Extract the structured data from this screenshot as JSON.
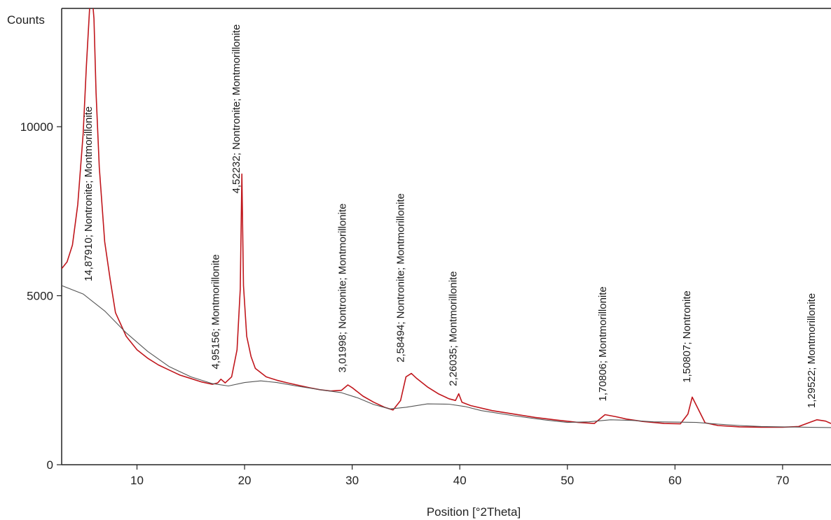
{
  "chart_data": {
    "type": "line",
    "title": "",
    "xlabel": "Position [°2Theta]",
    "ylabel": "Counts",
    "xlim": [
      3,
      74.5
    ],
    "ylim": [
      0,
      13500
    ],
    "x_ticks": [
      10,
      20,
      30,
      40,
      50,
      60,
      70
    ],
    "y_ticks": [
      0,
      5000,
      10000
    ],
    "grid": false,
    "colors": {
      "pattern": "#c0161c",
      "background": "#555555",
      "axis": "#222222"
    },
    "series": [
      {
        "role": "measured-pattern",
        "x": [
          3.0,
          3.5,
          4.0,
          4.5,
          5.0,
          5.3,
          5.6,
          5.8,
          6.0,
          6.2,
          6.5,
          7.0,
          7.5,
          8.0,
          9.0,
          10.0,
          11.0,
          12.0,
          13.0,
          14.0,
          15.0,
          16.0,
          17.0,
          17.5,
          17.8,
          18.2,
          18.8,
          19.3,
          19.6,
          19.75,
          19.9,
          20.2,
          20.6,
          21.0,
          22.0,
          23.0,
          24.0,
          25.0,
          26.0,
          27.0,
          28.0,
          29.0,
          29.6,
          30.0,
          31.0,
          32.0,
          33.0,
          33.8,
          34.5,
          35.0,
          35.5,
          36.0,
          37.0,
          38.0,
          39.0,
          39.6,
          39.9,
          40.2,
          41.0,
          43.0,
          45.0,
          47.0,
          49.0,
          51.0,
          52.5,
          53.5,
          54.5,
          55.5,
          57.0,
          59.0,
          60.5,
          61.2,
          61.6,
          62.0,
          62.8,
          64.0,
          66.0,
          68.0,
          70.0,
          71.5,
          72.5,
          73.2,
          74.0,
          74.5
        ],
        "y": [
          5800,
          6000,
          6500,
          7700,
          9800,
          11800,
          13500,
          14000,
          13200,
          11000,
          8800,
          6600,
          5500,
          4500,
          3800,
          3400,
          3150,
          2950,
          2800,
          2650,
          2550,
          2450,
          2380,
          2420,
          2530,
          2420,
          2600,
          3400,
          5200,
          8600,
          5300,
          3800,
          3200,
          2850,
          2600,
          2500,
          2420,
          2350,
          2280,
          2220,
          2180,
          2200,
          2360,
          2280,
          2030,
          1850,
          1700,
          1620,
          1900,
          2600,
          2700,
          2550,
          2300,
          2100,
          1950,
          1900,
          2100,
          1850,
          1750,
          1600,
          1500,
          1400,
          1320,
          1250,
          1220,
          1480,
          1420,
          1350,
          1280,
          1220,
          1210,
          1500,
          2000,
          1750,
          1240,
          1160,
          1120,
          1110,
          1110,
          1130,
          1250,
          1330,
          1290,
          1220
        ]
      },
      {
        "role": "background",
        "x": [
          3.0,
          5.0,
          7.0,
          9.0,
          11.0,
          13.0,
          15.0,
          17.0,
          18.5,
          20.0,
          21.5,
          23.0,
          25.0,
          27.0,
          29.0,
          30.5,
          32.0,
          33.5,
          35.0,
          37.0,
          39.0,
          40.5,
          42.0,
          45.0,
          48.0,
          50.0,
          52.0,
          54.0,
          56.0,
          58.0,
          60.0,
          62.0,
          64.0,
          66.0,
          68.0,
          70.0,
          72.0,
          74.5
        ],
        "y": [
          5300,
          5050,
          4550,
          3900,
          3350,
          2900,
          2600,
          2400,
          2330,
          2430,
          2480,
          2430,
          2320,
          2220,
          2130,
          1980,
          1780,
          1650,
          1700,
          1800,
          1790,
          1720,
          1600,
          1450,
          1320,
          1250,
          1270,
          1330,
          1310,
          1270,
          1260,
          1250,
          1200,
          1160,
          1130,
          1120,
          1110,
          1100
        ]
      }
    ],
    "annotations": [
      {
        "x": 6.0,
        "y": 5300,
        "text": "14,87910; Nontronite; Montmorillonite"
      },
      {
        "x": 17.8,
        "y": 2700,
        "text": "4,95156; Montmorillonite"
      },
      {
        "x": 19.75,
        "y": 7900,
        "text": "4,52232; Nontronite; Montmorillonite"
      },
      {
        "x": 29.6,
        "y": 2600,
        "text": "3,01998; Nontronite; Montmorillonite"
      },
      {
        "x": 35.0,
        "y": 2900,
        "text": "2,58494; Nontronite; Montmorillonite"
      },
      {
        "x": 39.9,
        "y": 2200,
        "text": "2,26035; Montmorillonite"
      },
      {
        "x": 53.8,
        "y": 1750,
        "text": "1,70806; Montmorillonite"
      },
      {
        "x": 61.6,
        "y": 2300,
        "text": "1,50807; Nontronite"
      },
      {
        "x": 73.2,
        "y": 1550,
        "text": "1,29522; Montmorillonite"
      }
    ]
  }
}
